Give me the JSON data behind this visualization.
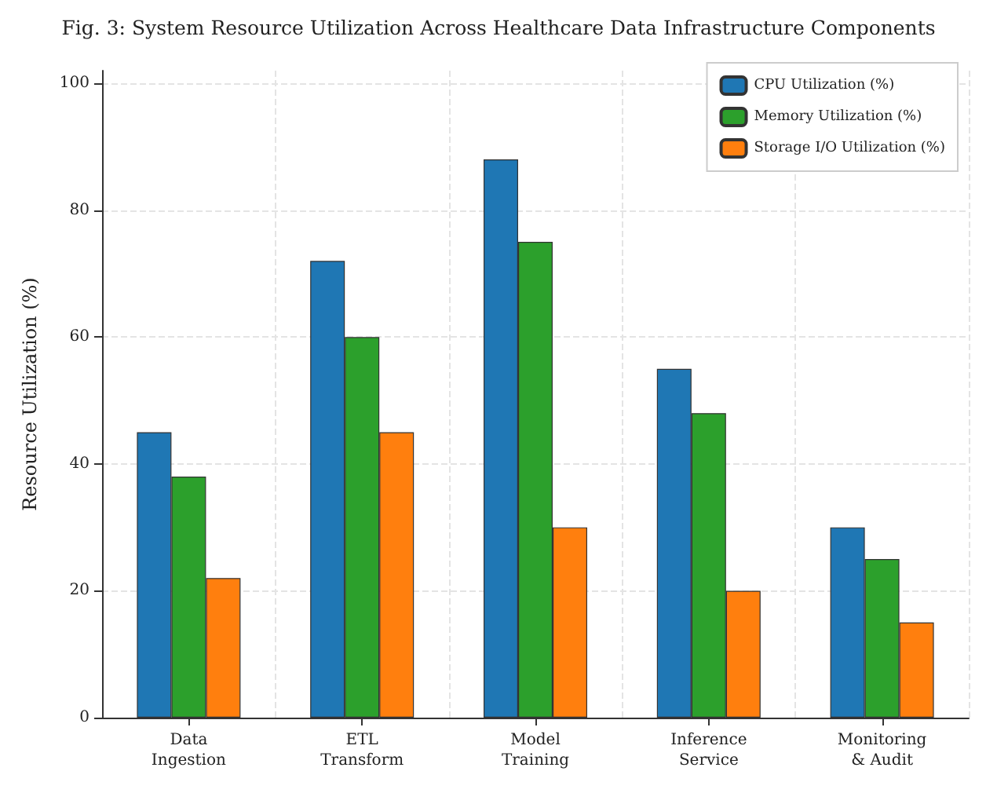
{
  "chart_data": {
    "type": "bar",
    "title": "Fig. 3: System Resource Utilization Across Healthcare Data Infrastructure Components",
    "ylabel": "Resource Utilization (%)",
    "categories": [
      "Data\nIngestion",
      "ETL\nTransform",
      "Model\nTraining",
      "Inference\nService",
      "Monitoring\n& Audit"
    ],
    "series": [
      {
        "name": "CPU Utilization (%)",
        "color": "#1f77b4",
        "values": [
          45,
          72,
          88,
          55,
          30
        ]
      },
      {
        "name": "Memory Utilization (%)",
        "color": "#2ca02c",
        "values": [
          38,
          60,
          75,
          48,
          25
        ]
      },
      {
        "name": "Storage I/O Utilization (%)",
        "color": "#ff7f0e",
        "values": [
          22,
          45,
          30,
          20,
          15
        ]
      }
    ],
    "ylim": [
      0,
      102
    ],
    "yticks": [
      0,
      20,
      40,
      60,
      80,
      100
    ],
    "grid": true,
    "legend": "top right"
  }
}
